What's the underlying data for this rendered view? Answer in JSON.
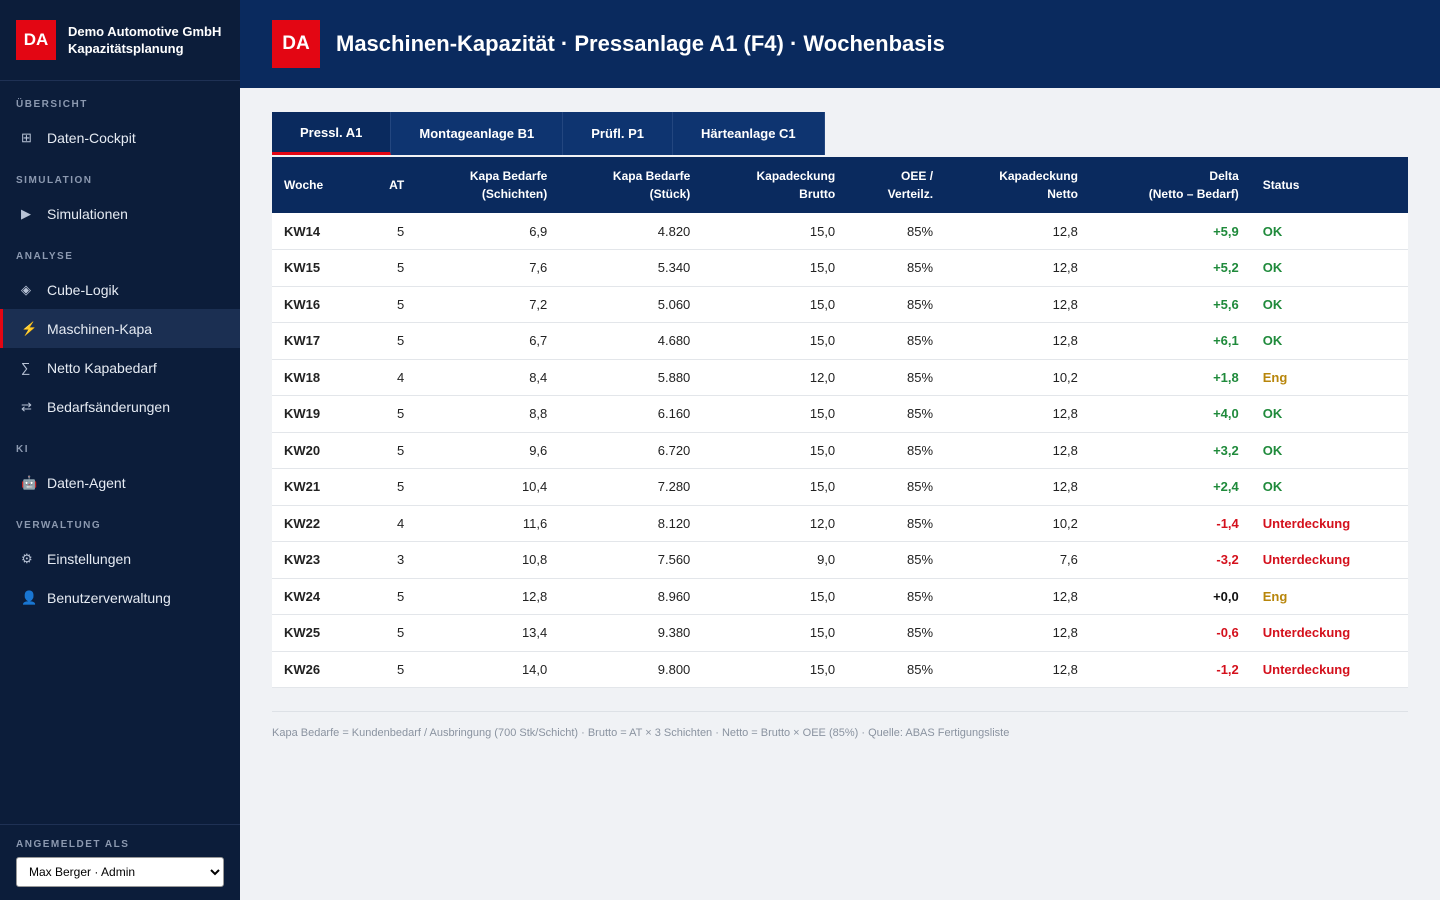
{
  "sidebar": {
    "brand": {
      "logo": "DA",
      "name": "Demo Automotive GmbH",
      "subtitle": "Kapazitätsplanung"
    },
    "sections": [
      {
        "title": "ÜBERSICHT",
        "items": [
          {
            "icon": "⊞",
            "label": "Daten-Cockpit"
          }
        ]
      },
      {
        "title": "SIMULATION",
        "items": [
          {
            "icon": "▶",
            "label": "Simulationen"
          }
        ]
      },
      {
        "title": "ANALYSE",
        "items": [
          {
            "icon": "◈",
            "label": "Cube-Logik"
          },
          {
            "icon": "⚡",
            "label": "Maschinen-Kapa",
            "active": true
          },
          {
            "icon": "∑",
            "label": "Netto Kapabedarf"
          },
          {
            "icon": "⇄",
            "label": "Bedarfsänderungen"
          }
        ]
      },
      {
        "title": "KI",
        "items": [
          {
            "icon": "🤖",
            "label": "Daten-Agent"
          }
        ]
      },
      {
        "title": "VERWALTUNG",
        "items": [
          {
            "icon": "⚙",
            "label": "Einstellungen"
          },
          {
            "icon": "👤",
            "label": "Benutzerverwaltung"
          }
        ]
      }
    ],
    "footer": {
      "label": "ANGEMELDET ALS",
      "user": "Max Berger · Admin"
    }
  },
  "header": {
    "logo": "DA",
    "title": "Maschinen-Kapazität · Pressanlage A1 (F4) · Wochenbasis"
  },
  "tabs": {
    "items": [
      "Pressl. A1",
      "Montageanlage B1",
      "Prüfl. P1",
      "Härteanlage C1"
    ],
    "active": 0
  },
  "table": {
    "columns": [
      "Woche",
      "AT",
      "Kapa Bedarfe\n(Schichten)",
      "Kapa Bedarfe\n(Stück)",
      "Kapadeckung\nBrutto",
      "OEE /\nVerteilz.",
      "Kapadeckung\nNetto",
      "Delta\n(Netto – Bedarf)",
      "Status"
    ],
    "rows": [
      [
        "KW14",
        "5",
        "6,9",
        "4.820",
        "15,0",
        "85%",
        "12,8",
        "+5,9",
        "OK"
      ],
      [
        "KW15",
        "5",
        "7,6",
        "5.340",
        "15,0",
        "85%",
        "12,8",
        "+5,2",
        "OK"
      ],
      [
        "KW16",
        "5",
        "7,2",
        "5.060",
        "15,0",
        "85%",
        "12,8",
        "+5,6",
        "OK"
      ],
      [
        "KW17",
        "5",
        "6,7",
        "4.680",
        "15,0",
        "85%",
        "12,8",
        "+6,1",
        "OK"
      ],
      [
        "KW18",
        "4",
        "8,4",
        "5.880",
        "12,0",
        "85%",
        "10,2",
        "+1,8",
        "Eng"
      ],
      [
        "KW19",
        "5",
        "8,8",
        "6.160",
        "15,0",
        "85%",
        "12,8",
        "+4,0",
        "OK"
      ],
      [
        "KW20",
        "5",
        "9,6",
        "6.720",
        "15,0",
        "85%",
        "12,8",
        "+3,2",
        "OK"
      ],
      [
        "KW21",
        "5",
        "10,4",
        "7.280",
        "15,0",
        "85%",
        "12,8",
        "+2,4",
        "OK"
      ],
      [
        "KW22",
        "4",
        "11,6",
        "8.120",
        "12,0",
        "85%",
        "10,2",
        "-1,4",
        "Unterdeckung"
      ],
      [
        "KW23",
        "3",
        "10,8",
        "7.560",
        "9,0",
        "85%",
        "7,6",
        "-3,2",
        "Unterdeckung"
      ],
      [
        "KW24",
        "5",
        "12,8",
        "8.960",
        "15,0",
        "85%",
        "12,8",
        "+0,0",
        "Eng"
      ],
      [
        "KW25",
        "5",
        "13,4",
        "9.380",
        "15,0",
        "85%",
        "12,8",
        "-0,6",
        "Unterdeckung"
      ],
      [
        "KW26",
        "5",
        "14,0",
        "9.800",
        "15,0",
        "85%",
        "12,8",
        "-1,2",
        "Unterdeckung"
      ]
    ],
    "status_colors": {
      "OK": "#1f8a3b",
      "Eng": "#b8860b",
      "Unterdeckung": "#d4101c"
    },
    "delta_colors": {
      "positive": "#1f8a3b",
      "negative": "#d4101c",
      "zero": "#111111"
    }
  },
  "footnote": "Kapa Bedarfe = Kundenbedarf / Ausbringung (700 Stk/Schicht) · Brutto = AT × 3 Schichten · Netto = Brutto × OEE (85%) · Quelle: ABAS Fertigungsliste"
}
